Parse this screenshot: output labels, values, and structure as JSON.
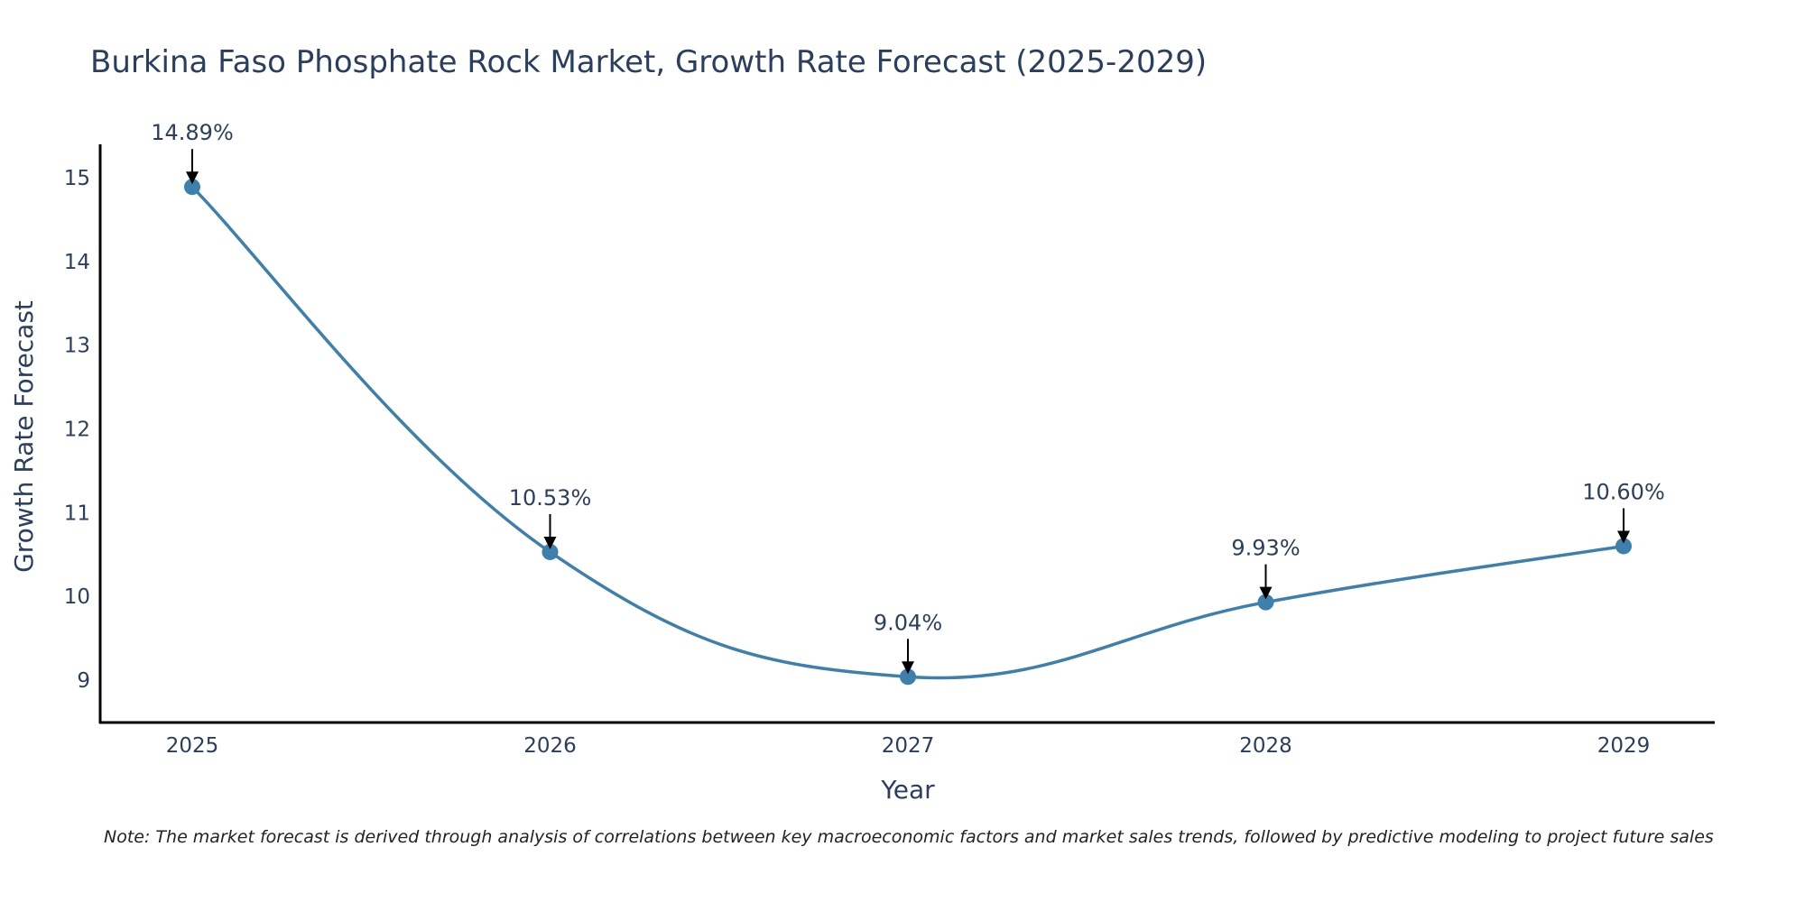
{
  "chart_data": {
    "type": "line",
    "title": "Burkina Faso Phosphate Rock Market, Growth Rate Forecast (2025-2029)",
    "xlabel": "Year",
    "ylabel": "Growth Rate Forecast",
    "categories": [
      "2025",
      "2026",
      "2027",
      "2028",
      "2029"
    ],
    "values": [
      14.89,
      10.53,
      9.04,
      9.93,
      10.6
    ],
    "data_labels": [
      "14.89%",
      "10.53%",
      "9.04%",
      "9.93%",
      "10.60%"
    ],
    "yticks": [
      9,
      10,
      11,
      12,
      13,
      14,
      15
    ],
    "ylim": [
      8.5,
      15.4
    ],
    "grid": false,
    "line_color": "#3d7fad",
    "marker_color": "#3d7fad",
    "note": "Note: The market forecast is derived through analysis of correlations between key macroeconomic factors and market sales trends, followed by predictive modeling to project future sales"
  }
}
